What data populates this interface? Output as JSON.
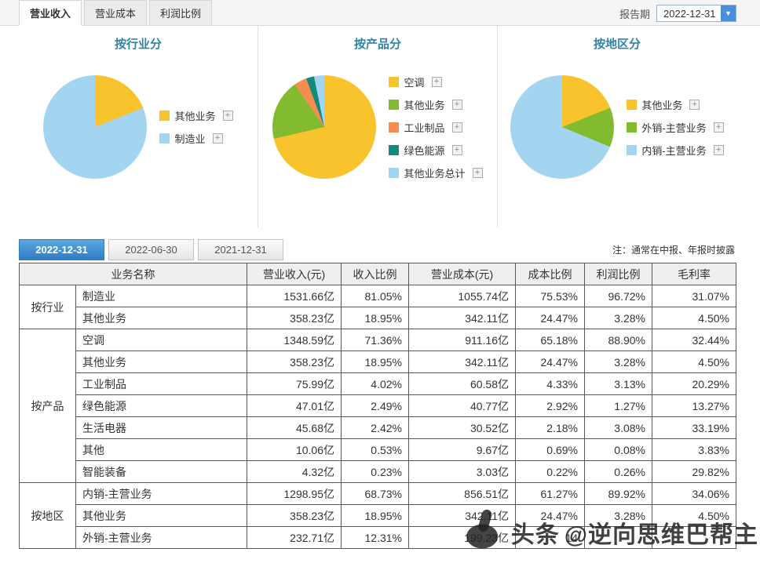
{
  "header": {
    "tabs": [
      {
        "label": "营业收入",
        "active": true
      },
      {
        "label": "营业成本",
        "active": false
      },
      {
        "label": "利润比例",
        "active": false
      }
    ],
    "report_period_label": "报告期",
    "report_period_value": "2022-12-31"
  },
  "chart_data": [
    {
      "type": "pie",
      "title": "按行业分",
      "labels": [
        "其他业务",
        "制造业"
      ],
      "values": [
        18.95,
        81.05
      ],
      "colors": [
        "#F8C32C",
        "#A3D5F0"
      ],
      "legend_position": "right"
    },
    {
      "type": "pie",
      "title": "按产品分",
      "labels": [
        "空调",
        "其他业务",
        "工业制品",
        "绿色能源",
        "其他业务总计"
      ],
      "values": [
        71.36,
        18.95,
        4.02,
        2.49,
        3.18
      ],
      "colors": [
        "#F8C32C",
        "#82BB2F",
        "#F58D4E",
        "#148A7D",
        "#A3D5F0"
      ],
      "legend_position": "right"
    },
    {
      "type": "pie",
      "title": "按地区分",
      "labels": [
        "其他业务",
        "外销-主营业务",
        "内销-主营业务"
      ],
      "values": [
        18.95,
        12.31,
        68.73
      ],
      "colors": [
        "#F8C32C",
        "#82BB2F",
        "#A3D5F0"
      ],
      "legend_position": "right"
    }
  ],
  "date_tabs": [
    {
      "label": "2022-12-31",
      "active": true
    },
    {
      "label": "2022-06-30",
      "active": false
    },
    {
      "label": "2021-12-31",
      "active": false
    }
  ],
  "note": "注：通常在中报、年报时披露",
  "table": {
    "headers": [
      "业务名称",
      "营业收入(元)",
      "收入比例",
      "营业成本(元)",
      "成本比例",
      "利润比例",
      "毛利率"
    ],
    "groups": [
      {
        "name": "按行业",
        "rows": [
          [
            "制造业",
            "1531.66亿",
            "81.05%",
            "1055.74亿",
            "75.53%",
            "96.72%",
            "31.07%"
          ],
          [
            "其他业务",
            "358.23亿",
            "18.95%",
            "342.11亿",
            "24.47%",
            "3.28%",
            "4.50%"
          ]
        ]
      },
      {
        "name": "按产品",
        "rows": [
          [
            "空调",
            "1348.59亿",
            "71.36%",
            "911.16亿",
            "65.18%",
            "88.90%",
            "32.44%"
          ],
          [
            "其他业务",
            "358.23亿",
            "18.95%",
            "342.11亿",
            "24.47%",
            "3.28%",
            "4.50%"
          ],
          [
            "工业制品",
            "75.99亿",
            "4.02%",
            "60.58亿",
            "4.33%",
            "3.13%",
            "20.29%"
          ],
          [
            "绿色能源",
            "47.01亿",
            "2.49%",
            "40.77亿",
            "2.92%",
            "1.27%",
            "13.27%"
          ],
          [
            "生活电器",
            "45.68亿",
            "2.42%",
            "30.52亿",
            "2.18%",
            "3.08%",
            "33.19%"
          ],
          [
            "其他",
            "10.06亿",
            "0.53%",
            "9.67亿",
            "0.69%",
            "0.08%",
            "3.83%"
          ],
          [
            "智能装备",
            "4.32亿",
            "0.23%",
            "3.03亿",
            "0.22%",
            "0.26%",
            "29.82%"
          ]
        ]
      },
      {
        "name": "按地区",
        "rows": [
          [
            "内销-主营业务",
            "1298.95亿",
            "68.73%",
            "856.51亿",
            "61.27%",
            "89.92%",
            "34.06%"
          ],
          [
            "其他业务",
            "358.23亿",
            "18.95%",
            "342.11亿",
            "24.47%",
            "3.28%",
            "4.50%"
          ],
          [
            "外销-主营业务",
            "232.71亿",
            "12.31%",
            "199.23亿",
            "14",
            "",
            ""
          ]
        ]
      }
    ]
  },
  "watermark": {
    "brand": "头条",
    "handle": "@逆向思维巴帮主"
  }
}
